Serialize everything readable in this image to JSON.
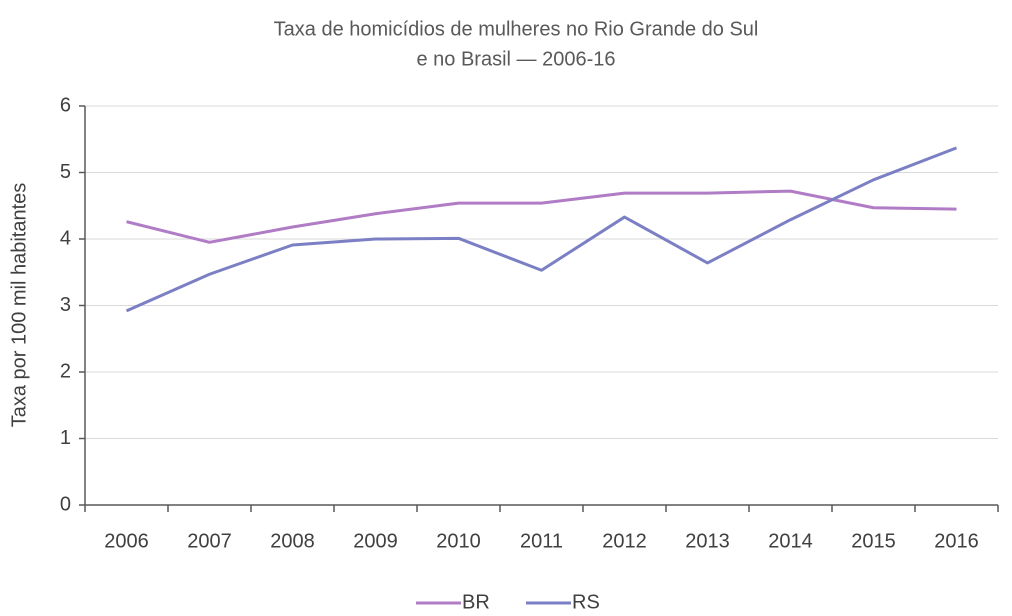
{
  "chart_data": {
    "type": "line",
    "title": [
      "Taxa de homicídios de mulheres no Rio Grande do Sul",
      "e no Brasil — 2006-16"
    ],
    "y_label": "Taxa por 100 mil habitantes",
    "categories": [
      "2006",
      "2007",
      "2008",
      "2009",
      "2010",
      "2011",
      "2012",
      "2013",
      "2014",
      "2015",
      "2016"
    ],
    "series": [
      {
        "name": "BR",
        "color": "#b07cc6",
        "values": [
          4.26,
          3.95,
          4.18,
          4.38,
          4.54,
          4.54,
          4.69,
          4.69,
          4.72,
          4.47,
          4.45
        ]
      },
      {
        "name": "RS",
        "color": "#7b7fc4",
        "values": [
          2.92,
          3.47,
          3.91,
          4.0,
          4.01,
          3.53,
          4.33,
          3.64,
          4.29,
          4.89,
          5.37
        ]
      }
    ],
    "ylim": [
      0,
      6
    ],
    "yticks": [
      0,
      1,
      2,
      3,
      4,
      5,
      6
    ],
    "grid": true,
    "legend": "bottom"
  }
}
